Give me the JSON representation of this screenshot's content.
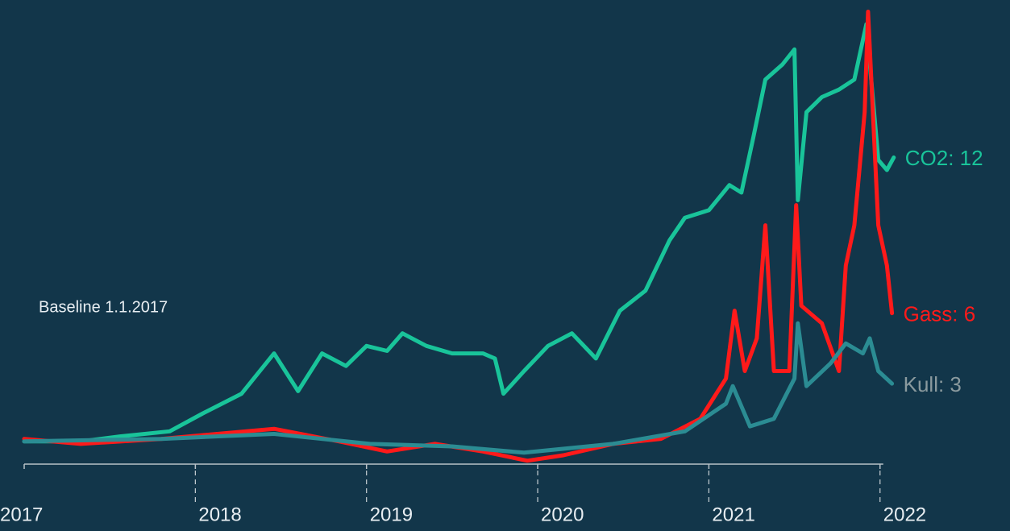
{
  "chart_data": {
    "type": "line",
    "annotation": "Baseline 1.1.2017",
    "xlim": [
      2017,
      2022.1
    ],
    "xticks": [
      2017,
      2018,
      2019,
      2020,
      2021,
      2022
    ],
    "ylim": [
      0,
      18.5
    ],
    "series": [
      {
        "label": "CO2: 12",
        "color": "#19c49a",
        "x": [
          2017,
          2017.33,
          2017.56,
          2017.85,
          2018.04,
          2018.27,
          2018.46,
          2018.6,
          2018.74,
          2018.88,
          2019.0,
          2019.12,
          2019.21,
          2019.35,
          2019.5,
          2019.68,
          2019.75,
          2019.8,
          2019.92,
          2020.06,
          2020.2,
          2020.34,
          2020.48,
          2020.63,
          2020.77,
          2020.86,
          2021.0,
          2021.12,
          2021.19,
          2021.26,
          2021.33,
          2021.43,
          2021.5,
          2021.52,
          2021.57,
          2021.66,
          2021.76,
          2021.85,
          2021.92,
          2021.99,
          2022.04,
          2022.08
        ],
        "values": [
          1,
          1,
          1.2,
          1.4,
          2.1,
          2.9,
          4.5,
          3,
          4.5,
          4,
          4.8,
          4.6,
          5.3,
          4.8,
          4.5,
          4.5,
          4.3,
          2.9,
          3.8,
          4.8,
          5.3,
          4.3,
          6.2,
          7,
          9,
          9.9,
          10.2,
          11.2,
          10.9,
          13.1,
          15.4,
          16,
          16.6,
          10.6,
          14.1,
          14.7,
          15,
          15.4,
          17.6,
          12.2,
          11.8,
          12.3
        ]
      },
      {
        "label": "Gass: 6",
        "color": "#ff1a1a",
        "x": [
          2017,
          2017.33,
          2017.8,
          2018.46,
          2018.84,
          2019.12,
          2019.4,
          2019.68,
          2019.94,
          2020.15,
          2020.44,
          2020.72,
          2020.95,
          2021.1,
          2021.15,
          2021.21,
          2021.28,
          2021.33,
          2021.38,
          2021.47,
          2021.51,
          2021.54,
          2021.66,
          2021.76,
          2021.8,
          2021.85,
          2021.91,
          2021.93,
          2021.99,
          2022.04,
          2022.07
        ],
        "values": [
          1.1,
          0.9,
          1.1,
          1.5,
          1,
          0.6,
          0.9,
          0.6,
          0.23,
          0.45,
          0.9,
          1.1,
          1.9,
          3.5,
          6.2,
          3.8,
          5.1,
          9.6,
          3.8,
          3.8,
          10.4,
          6.4,
          5.7,
          3.8,
          8,
          9.6,
          14.1,
          18.1,
          9.6,
          8,
          6.1
        ]
      },
      {
        "label": "Kull: 3",
        "color": "#2b8c93",
        "label_color": "#8a9a9e",
        "x": [
          2017,
          2017.8,
          2018.46,
          2019.02,
          2019.5,
          2019.92,
          2020.44,
          2020.86,
          2021.1,
          2021.14,
          2021.24,
          2021.38,
          2021.5,
          2021.52,
          2021.57,
          2021.71,
          2021.8,
          2021.9,
          2021.94,
          2021.99,
          2022.07
        ],
        "values": [
          1,
          1.1,
          1.3,
          0.9,
          0.8,
          0.55,
          0.9,
          1.4,
          2.5,
          3.2,
          1.6,
          1.9,
          3.5,
          5.7,
          3.2,
          4.1,
          4.9,
          4.5,
          5.1,
          3.8,
          3.3
        ]
      }
    ]
  }
}
